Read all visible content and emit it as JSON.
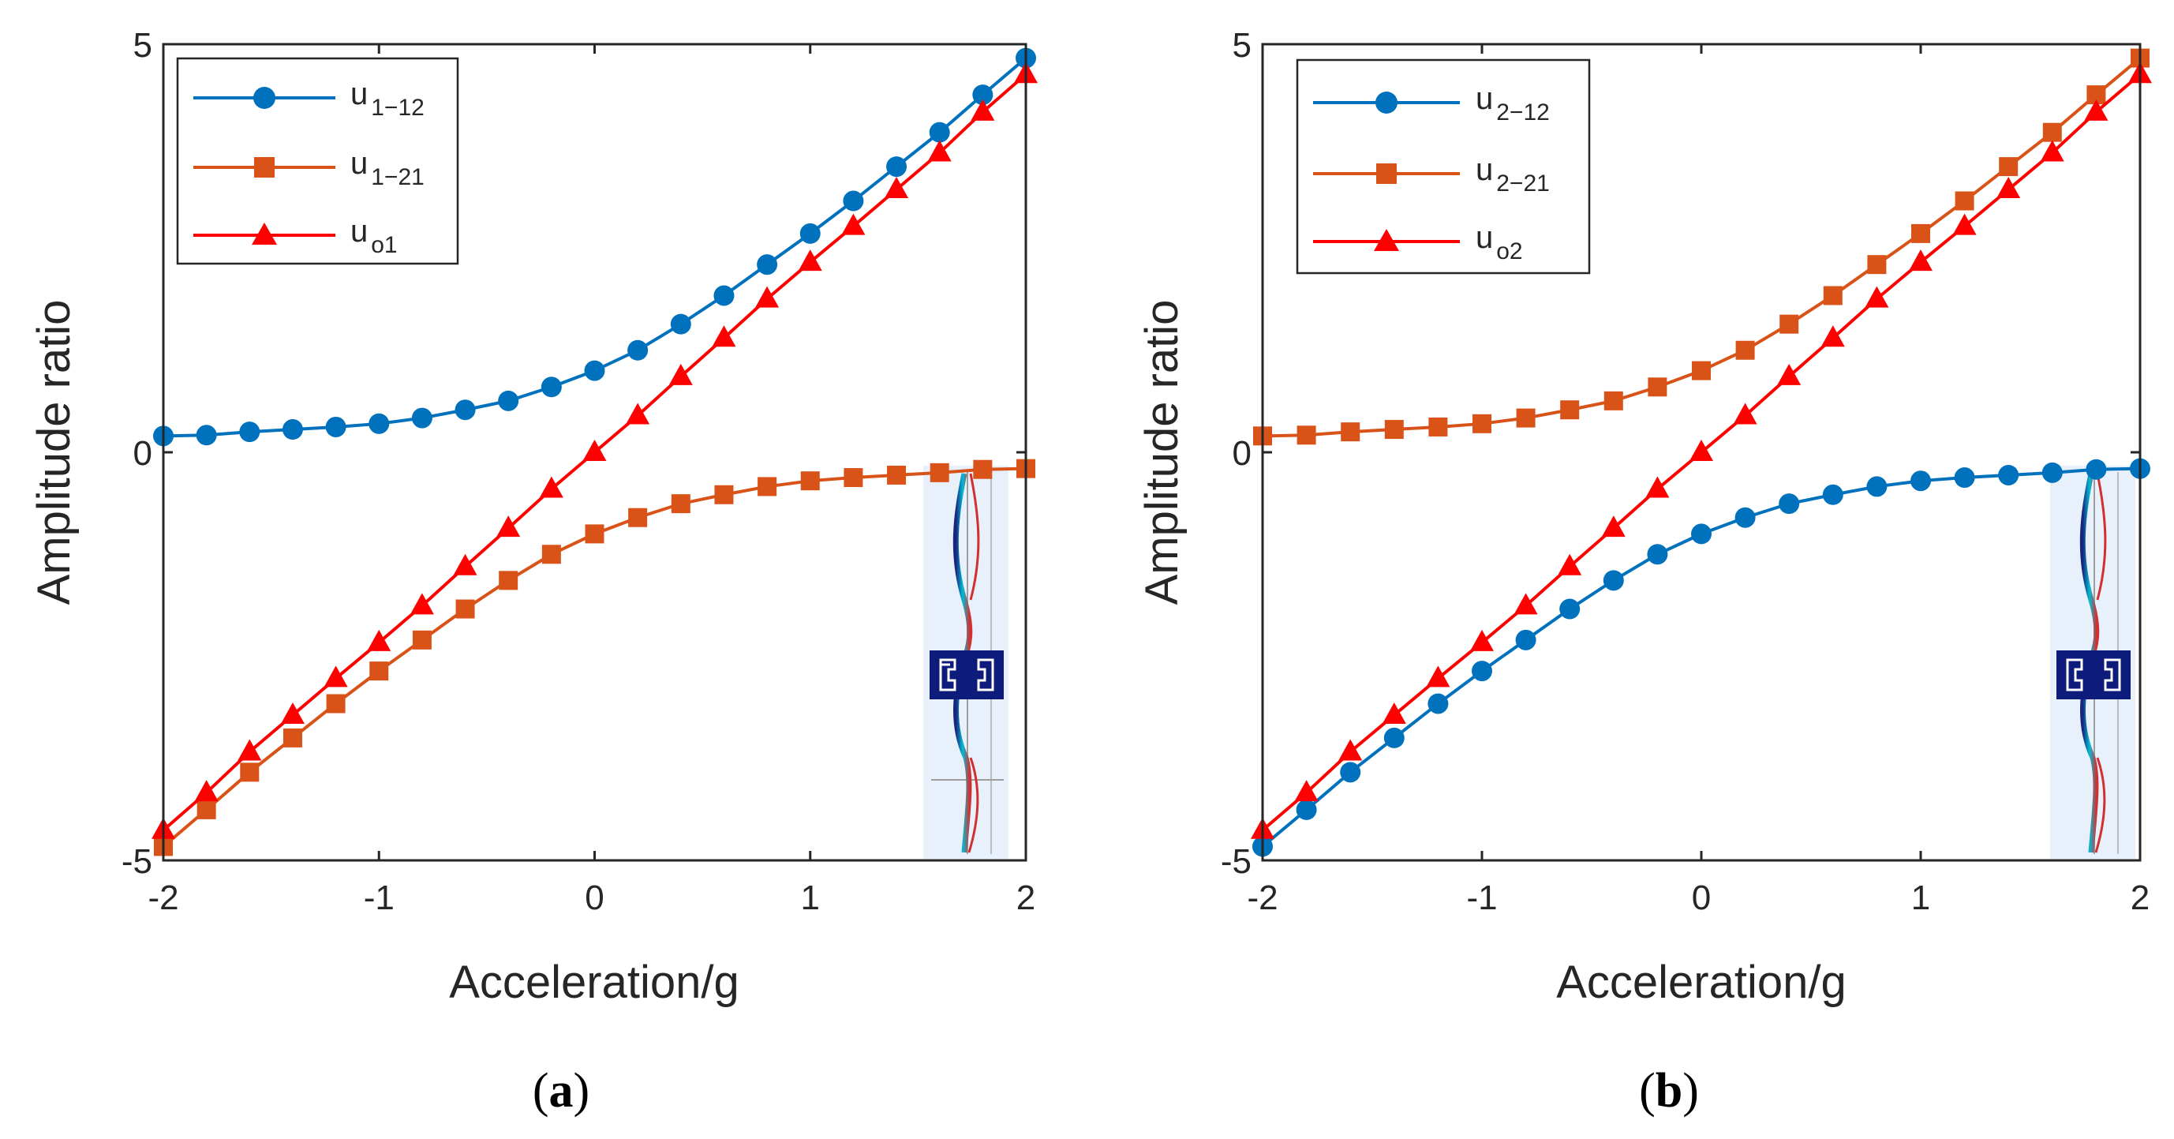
{
  "figure": {
    "colors": {
      "blue": "#0072BD",
      "orange": "#D95319",
      "red": "#FF0000",
      "axis": "#262626"
    }
  },
  "chart_data": [
    {
      "type": "line",
      "panel": "a",
      "caption_open": "(",
      "caption_letter": "a",
      "caption_close": ")",
      "title": "",
      "xlabel": "Acceleration/g",
      "ylabel": "Amplitude ratio",
      "xlim": [
        -2,
        2
      ],
      "ylim": [
        -5,
        5
      ],
      "xticks": [
        -2,
        -1,
        0,
        1,
        2
      ],
      "xtick_labels": [
        "-2",
        "-1",
        "0",
        "1",
        "2"
      ],
      "yticks": [
        -5,
        0,
        5
      ],
      "ytick_labels": [
        "-5",
        "0",
        "5"
      ],
      "grid": false,
      "legend_position": "top-left",
      "x": [
        -2.0,
        -1.8,
        -1.6,
        -1.4,
        -1.2,
        -1.0,
        -0.8,
        -0.6,
        -0.4,
        -0.2,
        0.0,
        0.2,
        0.4,
        0.6,
        0.8,
        1.0,
        1.2,
        1.4,
        1.6,
        1.8,
        2.0
      ],
      "series": [
        {
          "name": "u",
          "subscript": "1−12",
          "color": "#0072BD",
          "marker": "circle",
          "values": [
            0.2,
            0.21,
            0.25,
            0.28,
            0.31,
            0.35,
            0.42,
            0.52,
            0.63,
            0.8,
            1.0,
            1.25,
            1.57,
            1.92,
            2.3,
            2.68,
            3.08,
            3.5,
            3.92,
            4.38,
            4.83
          ]
        },
        {
          "name": "u",
          "subscript": "1−21",
          "color": "#D95319",
          "marker": "square",
          "values": [
            -4.83,
            -4.38,
            -3.92,
            -3.5,
            -3.08,
            -2.68,
            -2.3,
            -1.92,
            -1.57,
            -1.25,
            -1.0,
            -0.8,
            -0.63,
            -0.52,
            -0.42,
            -0.35,
            -0.31,
            -0.28,
            -0.25,
            -0.21,
            -0.2
          ]
        },
        {
          "name": "u",
          "subscript": "o1",
          "color": "#FF0000",
          "marker": "triangle",
          "values": [
            -4.63,
            -4.17,
            -3.67,
            -3.22,
            -2.77,
            -2.33,
            -1.88,
            -1.4,
            -0.93,
            -0.45,
            0.0,
            0.45,
            0.93,
            1.4,
            1.88,
            2.33,
            2.77,
            3.22,
            3.67,
            4.17,
            4.63
          ]
        }
      ]
    },
    {
      "type": "line",
      "panel": "b",
      "caption_open": "(",
      "caption_letter": "b",
      "caption_close": ")",
      "title": "",
      "xlabel": "Acceleration/g",
      "ylabel": "Amplitude ratio",
      "xlim": [
        -2,
        2
      ],
      "ylim": [
        -5,
        5
      ],
      "xticks": [
        -2,
        -1,
        0,
        1,
        2
      ],
      "xtick_labels": [
        "-2",
        "-1",
        "0",
        "1",
        "2"
      ],
      "yticks": [
        -5,
        0,
        5
      ],
      "ytick_labels": [
        "-5",
        "0",
        "5"
      ],
      "grid": false,
      "legend_position": "top-left",
      "x": [
        -2.0,
        -1.8,
        -1.6,
        -1.4,
        -1.2,
        -1.0,
        -0.8,
        -0.6,
        -0.4,
        -0.2,
        0.0,
        0.2,
        0.4,
        0.6,
        0.8,
        1.0,
        1.2,
        1.4,
        1.6,
        1.8,
        2.0
      ],
      "series": [
        {
          "name": "u",
          "subscript": "2−12",
          "color": "#0072BD",
          "marker": "circle",
          "values": [
            -4.83,
            -4.38,
            -3.92,
            -3.5,
            -3.08,
            -2.68,
            -2.3,
            -1.92,
            -1.57,
            -1.25,
            -1.0,
            -0.8,
            -0.63,
            -0.52,
            -0.42,
            -0.35,
            -0.31,
            -0.28,
            -0.25,
            -0.21,
            -0.2
          ]
        },
        {
          "name": "u",
          "subscript": "2−21",
          "color": "#D95319",
          "marker": "square",
          "values": [
            0.2,
            0.21,
            0.25,
            0.28,
            0.31,
            0.35,
            0.42,
            0.52,
            0.63,
            0.8,
            1.0,
            1.25,
            1.57,
            1.92,
            2.3,
            2.68,
            3.08,
            3.5,
            3.92,
            4.38,
            4.83
          ]
        },
        {
          "name": "u",
          "subscript": "o2",
          "color": "#FF0000",
          "marker": "triangle",
          "values": [
            -4.63,
            -4.17,
            -3.67,
            -3.22,
            -2.77,
            -2.33,
            -1.88,
            -1.4,
            -0.93,
            -0.45,
            0.0,
            0.45,
            0.93,
            1.4,
            1.88,
            2.33,
            2.77,
            3.22,
            3.67,
            4.17,
            4.63
          ]
        }
      ]
    }
  ]
}
